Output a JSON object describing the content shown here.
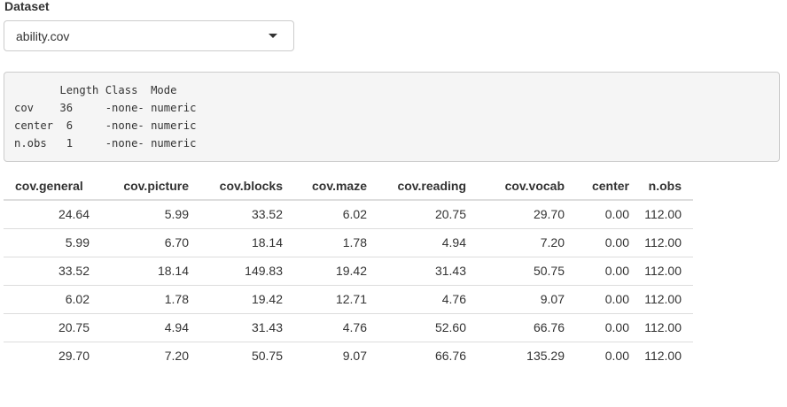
{
  "dataset": {
    "label": "Dataset",
    "selected": "ability.cov"
  },
  "summary_output": {
    "lines": [
      "       Length Class  Mode   ",
      "cov    36     -none- numeric",
      "center  6     -none- numeric",
      "n.obs   1     -none- numeric"
    ]
  },
  "table": {
    "headers": [
      "cov.general",
      "cov.picture",
      "cov.blocks",
      "cov.maze",
      "cov.reading",
      "cov.vocab",
      "center",
      "n.obs"
    ],
    "rows": [
      [
        "24.64",
        "5.99",
        "33.52",
        "6.02",
        "20.75",
        "29.70",
        "0.00",
        "112.00"
      ],
      [
        "5.99",
        "6.70",
        "18.14",
        "1.78",
        "4.94",
        "7.20",
        "0.00",
        "112.00"
      ],
      [
        "33.52",
        "18.14",
        "149.83",
        "19.42",
        "31.43",
        "50.75",
        "0.00",
        "112.00"
      ],
      [
        "6.02",
        "1.78",
        "19.42",
        "12.71",
        "4.76",
        "9.07",
        "0.00",
        "112.00"
      ],
      [
        "20.75",
        "4.94",
        "31.43",
        "4.76",
        "52.60",
        "66.76",
        "0.00",
        "112.00"
      ],
      [
        "29.70",
        "7.20",
        "50.75",
        "9.07",
        "66.76",
        "135.29",
        "0.00",
        "112.00"
      ]
    ]
  },
  "icons": {
    "dropdown": "chevron-down-icon"
  }
}
